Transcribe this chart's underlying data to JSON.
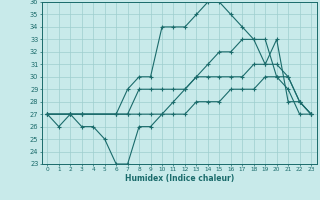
{
  "xlabel": "Humidex (Indice chaleur)",
  "xlim": [
    -0.5,
    23.5
  ],
  "ylim": [
    23,
    36
  ],
  "xticks": [
    0,
    1,
    2,
    3,
    4,
    5,
    6,
    7,
    8,
    9,
    10,
    11,
    12,
    13,
    14,
    15,
    16,
    17,
    18,
    19,
    20,
    21,
    22,
    23
  ],
  "yticks": [
    23,
    24,
    25,
    26,
    27,
    28,
    29,
    30,
    31,
    32,
    33,
    34,
    35,
    36
  ],
  "bg_color": "#c8eaea",
  "grid_color": "#9ecece",
  "line_color": "#1a6b6b",
  "line1_x": [
    0,
    1,
    2,
    3,
    4,
    5,
    6,
    7,
    8,
    9,
    10,
    11,
    12,
    13,
    14,
    15,
    16,
    17,
    18,
    19,
    20,
    21,
    22,
    23
  ],
  "line1_y": [
    27,
    26,
    27,
    26,
    26,
    25,
    23,
    23,
    26,
    26,
    27,
    28,
    29,
    30,
    31,
    32,
    32,
    33,
    33,
    31,
    33,
    28,
    28,
    27
  ],
  "line2_x": [
    0,
    2,
    3,
    6,
    7,
    8,
    9,
    10,
    11,
    12,
    13,
    14,
    15,
    16,
    17,
    18,
    19,
    20,
    21,
    22,
    23
  ],
  "line2_y": [
    27,
    27,
    27,
    27,
    29,
    30,
    30,
    34,
    34,
    34,
    35,
    36,
    36,
    35,
    34,
    33,
    33,
    30,
    29,
    27,
    27
  ],
  "line3_x": [
    0,
    2,
    3,
    6,
    7,
    8,
    9,
    10,
    11,
    12,
    13,
    14,
    15,
    16,
    17,
    18,
    19,
    20,
    21,
    22,
    23
  ],
  "line3_y": [
    27,
    27,
    27,
    27,
    27,
    29,
    29,
    29,
    29,
    29,
    30,
    30,
    30,
    30,
    30,
    31,
    31,
    31,
    30,
    28,
    27
  ],
  "line4_x": [
    0,
    2,
    3,
    6,
    7,
    8,
    9,
    10,
    11,
    12,
    13,
    14,
    15,
    16,
    17,
    18,
    19,
    20,
    21,
    22,
    23
  ],
  "line4_y": [
    27,
    27,
    27,
    27,
    27,
    27,
    27,
    27,
    27,
    27,
    28,
    28,
    28,
    29,
    29,
    29,
    30,
    30,
    30,
    28,
    27
  ]
}
